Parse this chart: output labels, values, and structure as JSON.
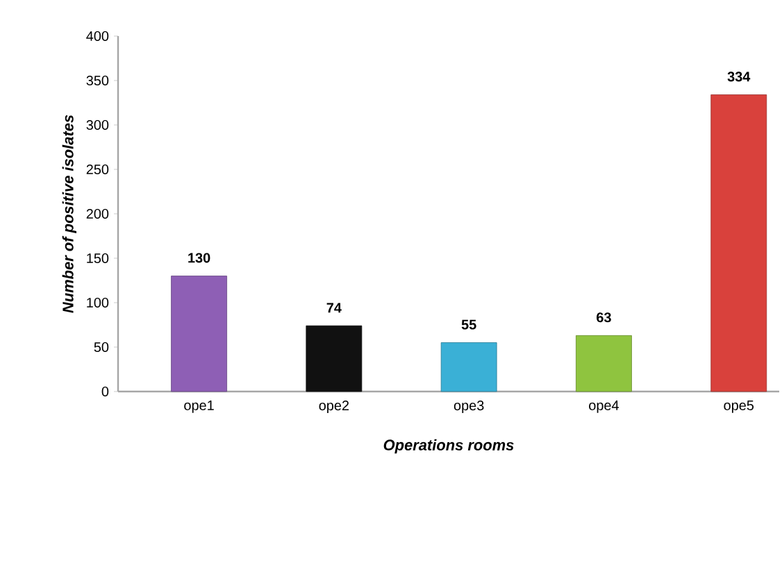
{
  "chart_data": {
    "type": "bar",
    "xlabel": "Operations rooms",
    "ylabel": "Number of positive isolates",
    "categories": [
      "ope1",
      "ope2",
      "ope3",
      "ope4",
      "ope5"
    ],
    "values": [
      130,
      74,
      55,
      63,
      334
    ],
    "colors": [
      "#8e5fb5",
      "#111111",
      "#3ab0d6",
      "#8fc43f",
      "#d9413c"
    ],
    "ylim": [
      0,
      400
    ],
    "yticks": [
      0,
      50,
      100,
      150,
      200,
      250,
      300,
      350,
      400
    ],
    "data_labels": true,
    "grid": false
  }
}
